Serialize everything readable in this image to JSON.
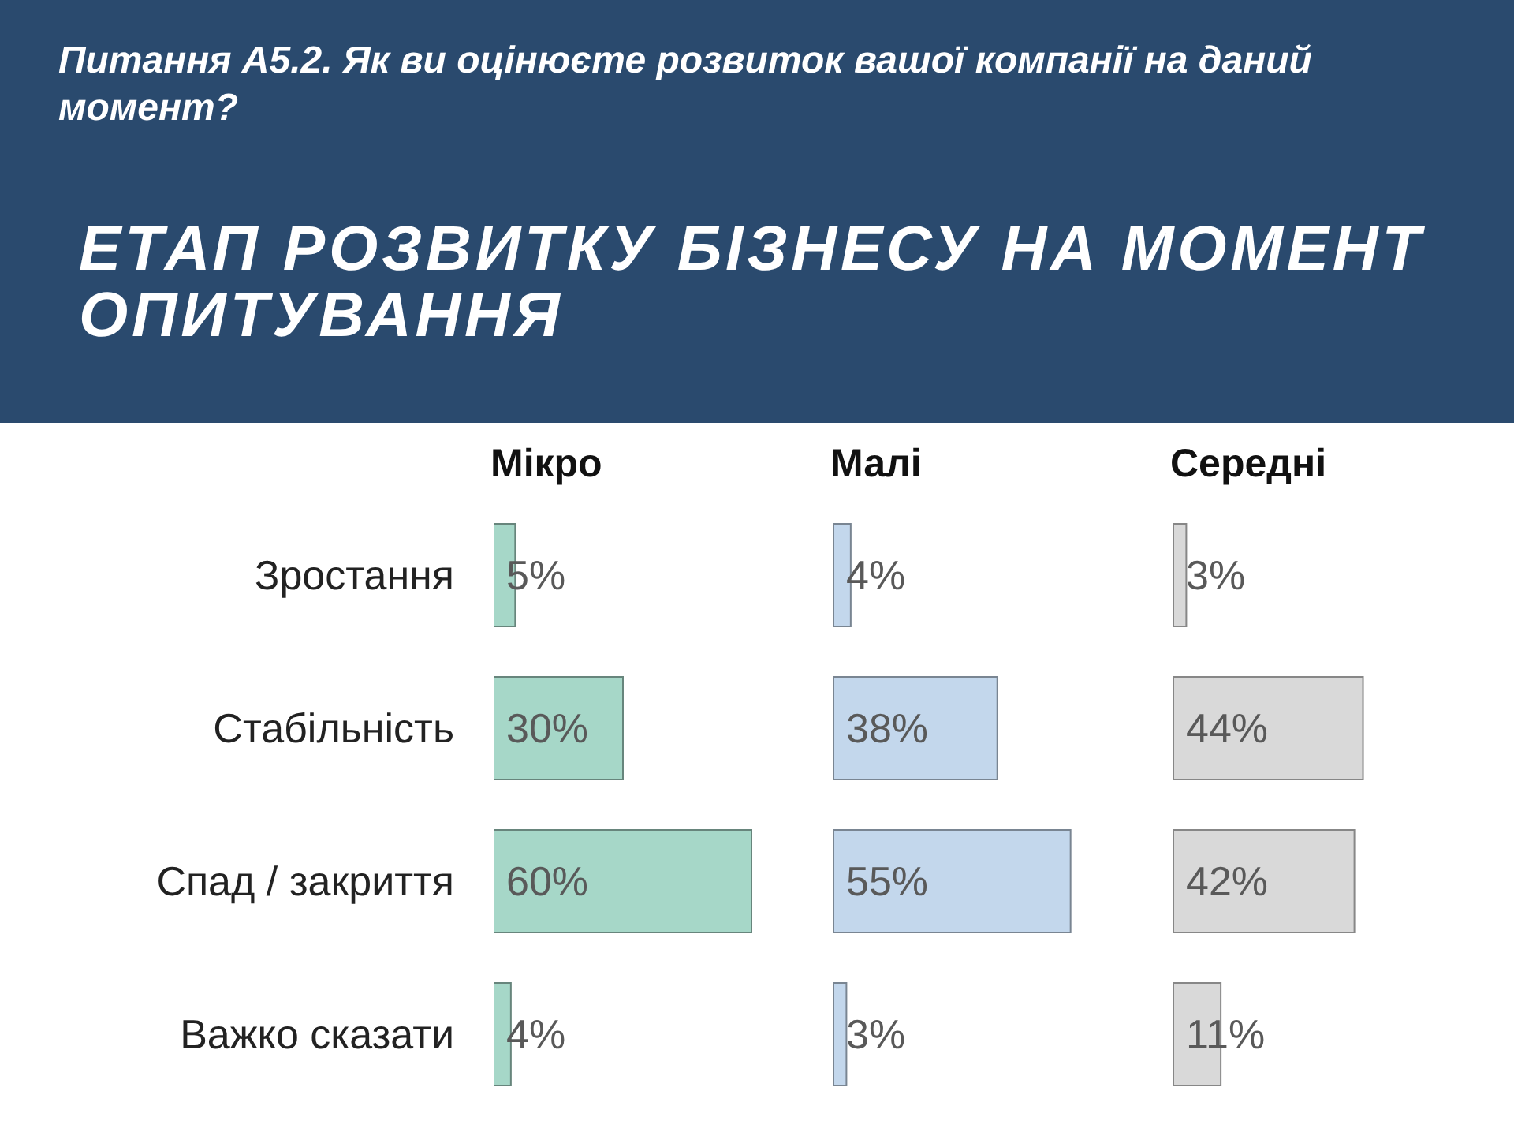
{
  "chart_data": [
    {
      "type": "other",
      "title": "ЕТАП РОЗВИТКУ БІЗНЕСУ НА МОМЕНТ ОПИТУВАННЯ",
      "subtitle": "Питання А5.2. Як ви оцінюєте розвиток вашої компанії на даний момент?"
    },
    {
      "type": "bar",
      "orientation": "horizontal",
      "title": "Мікро",
      "categories": [
        "Зростання",
        "Стабільність",
        "Спад / закриття",
        "Важко сказати"
      ],
      "values": [
        5,
        30,
        60,
        4
      ],
      "value_labels": [
        "5%",
        "30%",
        "60%",
        "4%"
      ],
      "color": "#a6d7c8"
    },
    {
      "type": "bar",
      "orientation": "horizontal",
      "title": "Малі",
      "categories": [
        null,
        null,
        null,
        null
      ],
      "values": [
        4,
        38,
        55,
        3
      ],
      "value_labels": [
        "4%",
        "38%",
        "55%",
        "3%"
      ],
      "color": "#c3d7ec"
    },
    {
      "type": "bar",
      "orientation": "horizontal",
      "title": "Середні",
      "categories": [
        null,
        null,
        null,
        null
      ],
      "values": [
        3,
        44,
        42,
        11
      ],
      "value_labels": [
        "3%",
        "44%",
        "42%",
        "11%"
      ],
      "color": "#d9d9d9"
    }
  ]
}
